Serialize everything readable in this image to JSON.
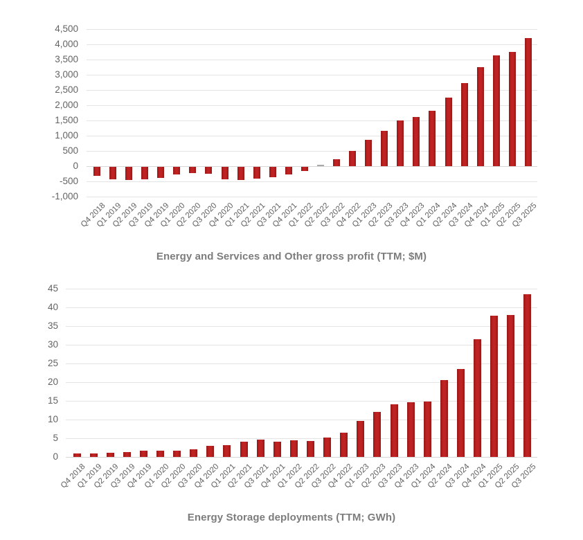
{
  "colors": {
    "bar": "#b81d1d",
    "bar_near_zero_gray": "#a9a9a9",
    "gridline": "#e4e4e4",
    "axis_label_text": "#636363",
    "title_text": "#7c7c7c",
    "background": "#ffffff"
  },
  "chart_data": [
    {
      "type": "bar",
      "title": "Energy and Services and Other gross profit (TTM; $M)",
      "xlabel": "",
      "ylabel": "",
      "ylim": [
        -1000,
        4500
      ],
      "ytick_step": 500,
      "yticks_top_to_bottom": [
        "4,500",
        "4,000",
        "3,500",
        "3,000",
        "2,500",
        "2,000",
        "1,500",
        "1,000",
        "500",
        "0",
        "-500",
        "-1,000"
      ],
      "grid": true,
      "legend": "none",
      "categories": [
        "Q4 2018",
        "Q1 2019",
        "Q2 2019",
        "Q3 2019",
        "Q4 2019",
        "Q1 2020",
        "Q2 2020",
        "Q3 2020",
        "Q4 2020",
        "Q1 2021",
        "Q2 2021",
        "Q3 2021",
        "Q4 2021",
        "Q1 2022",
        "Q2 2022",
        "Q3 2022",
        "Q4 2022",
        "Q1 2023",
        "Q2 2023",
        "Q3 2023",
        "Q4 2023",
        "Q1 2024",
        "Q2 2024",
        "Q3 2024",
        "Q4 2024",
        "Q1 2025",
        "Q2 2025",
        "Q3 2025"
      ],
      "values": [
        -300,
        -400,
        -440,
        -420,
        -360,
        -260,
        -205,
        -220,
        -400,
        -440,
        -395,
        -345,
        -240,
        -130,
        20,
        220,
        490,
        875,
        1150,
        1490,
        1610,
        1810,
        2260,
        2730,
        3250,
        3640,
        3740,
        4200
      ],
      "near_zero_gray_bar_category": "Q2 2022"
    },
    {
      "type": "bar",
      "title": "Energy Storage deployments (TTM; GWh)",
      "xlabel": "",
      "ylabel": "",
      "ylim": [
        0,
        45
      ],
      "ytick_step": 5,
      "yticks_top_to_bottom": [
        "45",
        "40",
        "35",
        "30",
        "25",
        "20",
        "15",
        "10",
        "5",
        "0"
      ],
      "grid": true,
      "legend": "none",
      "categories": [
        "Q4 2018",
        "Q1 2019",
        "Q2 2019",
        "Q3 2019",
        "Q4 2019",
        "Q1 2020",
        "Q2 2020",
        "Q3 2020",
        "Q4 2020",
        "Q1 2021",
        "Q2 2021",
        "Q3 2021",
        "Q4 2021",
        "Q1 2022",
        "Q2 2022",
        "Q3 2022",
        "Q4 2022",
        "Q1 2023",
        "Q2 2023",
        "Q3 2023",
        "Q4 2023",
        "Q1 2024",
        "Q2 2024",
        "Q3 2024",
        "Q4 2024",
        "Q1 2025",
        "Q2 2025",
        "Q3 2025"
      ],
      "values": [
        1.0,
        0.9,
        1.1,
        1.35,
        1.65,
        1.7,
        1.7,
        2.0,
        3.0,
        3.2,
        4.1,
        4.6,
        4.0,
        4.4,
        4.25,
        5.1,
        6.5,
        9.6,
        12.1,
        14.0,
        14.7,
        14.9,
        20.6,
        23.6,
        31.4,
        37.7,
        37.9,
        43.5
      ]
    }
  ]
}
